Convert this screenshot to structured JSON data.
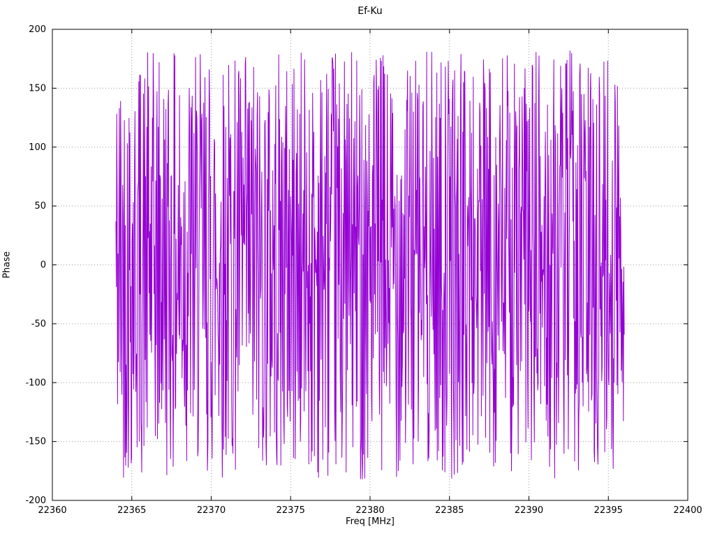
{
  "chart_data": {
    "type": "line",
    "title": "Ef-Ku",
    "xlabel": "Freq [MHz]",
    "ylabel": "Phase",
    "xlim": [
      22360,
      22400
    ],
    "ylim": [
      -200,
      200
    ],
    "x_ticks": [
      22360,
      22365,
      22370,
      22375,
      22380,
      22385,
      22390,
      22395,
      22400
    ],
    "y_ticks": [
      -200,
      -150,
      -100,
      -50,
      0,
      50,
      100,
      150,
      200
    ],
    "grid": true,
    "legend": "none",
    "series": [
      {
        "name": "phase",
        "color": "#9400d3",
        "x_start": 22364.0,
        "x_end": 22396.0,
        "n_points": 1200,
        "y_min": -182,
        "y_max": 182,
        "random_seed": 42,
        "description": "densely sampled wrapped phase, uniformly scattered between about -180 and +180 degrees across the band 22364-22396 MHz; successive samples jump across the full range producing a solid band of vertical strokes"
      }
    ]
  }
}
